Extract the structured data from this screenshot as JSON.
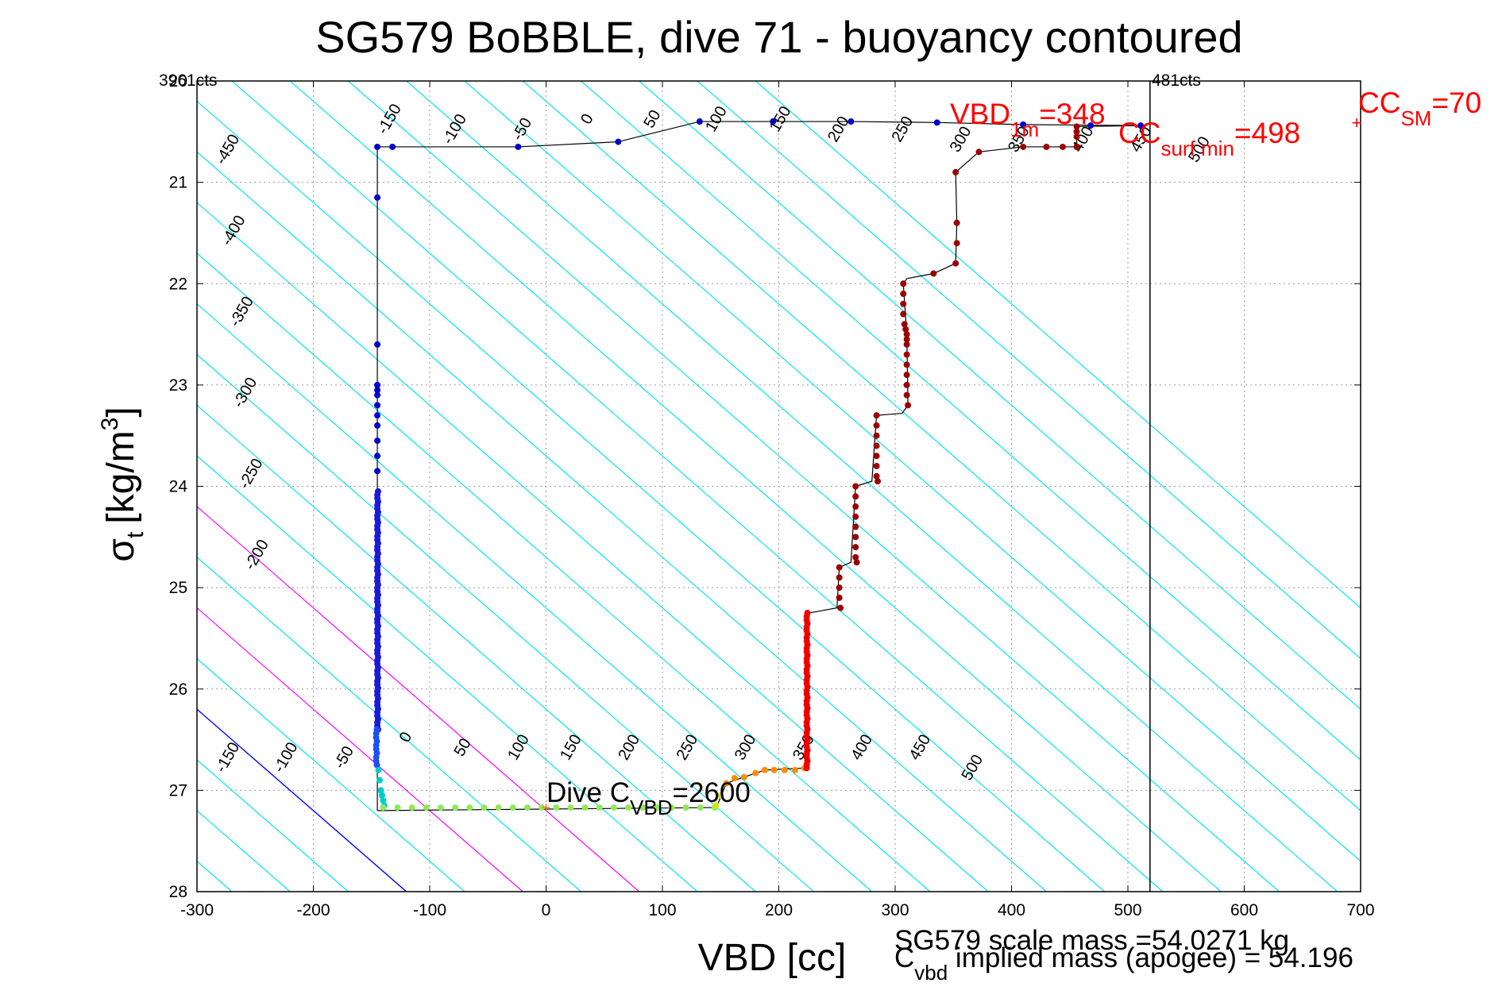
{
  "chart_data": {
    "type": "scatter",
    "title": "SG579 BoBBLE, dive 71 - buoyancy contoured",
    "xlabel": "VBD [cc]",
    "ylabel_main": "σ",
    "ylabel_sub": "t",
    "ylabel_unit": "[kg/m",
    "ylabel_sup": "3",
    "ylabel_close": "]",
    "xlim": [
      -300,
      700
    ],
    "ylim": [
      28,
      20
    ],
    "xticks": [
      -300,
      -200,
      -100,
      0,
      100,
      200,
      300,
      400,
      500,
      600,
      700
    ],
    "yticks": [
      20,
      21,
      22,
      23,
      24,
      25,
      26,
      27,
      28
    ],
    "grid": true,
    "colors": {
      "contour": "#00e5ee",
      "magenta": "#ff00ff",
      "zero_line": "#0000ff",
      "profile_line": "#000000",
      "annotation": "#ff0000"
    },
    "top_left_counts": "3961cts",
    "top_right_counts": "481cts",
    "vertical_line_x": 519,
    "contour_levels_top": [
      "-450",
      "-400",
      "-350",
      "-300",
      "-250",
      "-200"
    ],
    "contour_labels_upper": [
      {
        "text": "-150",
        "x": -131,
        "s": 20.4
      },
      {
        "text": "-100",
        "x": -75,
        "s": 20.5
      },
      {
        "text": "-50",
        "x": -17,
        "s": 20.5
      },
      {
        "text": "0",
        "x": 39,
        "s": 20.4
      },
      {
        "text": "50",
        "x": 95,
        "s": 20.4
      },
      {
        "text": "100",
        "x": 150,
        "s": 20.4
      },
      {
        "text": "150",
        "x": 205,
        "s": 20.4
      },
      {
        "text": "200",
        "x": 255,
        "s": 20.5
      },
      {
        "text": "250",
        "x": 310,
        "s": 20.5
      },
      {
        "text": "300",
        "x": 360,
        "s": 20.6
      },
      {
        "text": "350",
        "x": 410,
        "s": 20.6
      },
      {
        "text": "400",
        "x": 465,
        "s": 20.6
      },
      {
        "text": "450",
        "x": 515,
        "s": 20.6
      },
      {
        "text": "500",
        "x": 565,
        "s": 20.7
      }
    ],
    "contour_labels_left": [
      {
        "text": "-450",
        "x": -270,
        "s": 20.7
      },
      {
        "text": "-400",
        "x": -265,
        "s": 21.5
      },
      {
        "text": "-350",
        "x": -258,
        "s": 22.3
      },
      {
        "text": "-300",
        "x": -255,
        "s": 23.1
      },
      {
        "text": "-250",
        "x": -250,
        "s": 23.9
      },
      {
        "text": "-200",
        "x": -245,
        "s": 24.7
      }
    ],
    "contour_labels_lower": [
      {
        "text": "-150",
        "x": -270,
        "s": 26.7
      },
      {
        "text": "-100",
        "x": -220,
        "s": 26.7
      },
      {
        "text": "-50",
        "x": -170,
        "s": 26.7
      },
      {
        "text": "0",
        "x": -117,
        "s": 26.5
      },
      {
        "text": "50",
        "x": -68,
        "s": 26.6
      },
      {
        "text": "100",
        "x": -20,
        "s": 26.6
      },
      {
        "text": "150",
        "x": 25,
        "s": 26.6
      },
      {
        "text": "200",
        "x": 75,
        "s": 26.6
      },
      {
        "text": "250",
        "x": 125,
        "s": 26.6
      },
      {
        "text": "300",
        "x": 175,
        "s": 26.6
      },
      {
        "text": "350",
        "x": 225,
        "s": 26.6
      },
      {
        "text": "400",
        "x": 275,
        "s": 26.6
      },
      {
        "text": "450",
        "x": 325,
        "s": 26.6
      },
      {
        "text": "500",
        "x": 370,
        "s": 26.8
      }
    ],
    "annotations": {
      "vbd1m_main": "VBD",
      "vbd1m_sub": "1m",
      "vbd1m_value": "=348",
      "ccsurf_main": "CC",
      "ccsurf_sub": "surf min",
      "ccsurf_value": "=498",
      "ccsm_main": "CC",
      "ccsm_sub": "SM",
      "ccsm_value": "=70",
      "dive_main": "Dive C",
      "dive_sub": "VBD",
      "dive_value": "=2600",
      "scale_mass": "SG579 scale mass =54.0271 kg",
      "implied_main": "C",
      "implied_sub": "vbd",
      "implied_text": " implied mass (apogee) = 54.196"
    },
    "descent_path": [
      [
        -145,
        20.65
      ],
      [
        -145,
        27.2
      ]
    ],
    "series": [
      {
        "name": "descent-upper",
        "color": "#0000cc",
        "points": [
          [
            -145,
            20.65
          ],
          [
            -132,
            20.65
          ],
          [
            -24,
            20.65
          ],
          [
            62,
            20.6
          ],
          [
            132,
            20.4
          ],
          [
            195,
            20.4
          ],
          [
            262,
            20.4
          ],
          [
            336,
            20.41
          ],
          [
            410,
            20.43
          ],
          [
            468,
            20.44
          ],
          [
            511,
            20.44
          ],
          [
            -145,
            21.15
          ],
          [
            -145,
            22.6
          ],
          [
            -145,
            23.0
          ],
          [
            -145,
            23.05
          ],
          [
            -145,
            23.1
          ],
          [
            -145,
            23.2
          ],
          [
            -145,
            23.3
          ],
          [
            -145,
            23.4
          ],
          [
            -145,
            23.55
          ],
          [
            -145,
            23.7
          ],
          [
            -145,
            23.85
          ]
        ]
      },
      {
        "name": "descent-dense",
        "color": "#1a1add",
        "x": -145,
        "s_range": [
          24.05,
          26.4
        ],
        "count": 70
      },
      {
        "name": "descent-bottom",
        "color": "#1e50f0",
        "x": -146,
        "s_range": [
          26.4,
          26.75
        ],
        "count": 10
      },
      {
        "name": "apogee",
        "color": "#00cccc",
        "points": [
          [
            -144,
            26.8
          ],
          [
            -143,
            26.9
          ],
          [
            -142,
            27.0
          ],
          [
            -141,
            27.05
          ],
          [
            -140,
            27.1
          ],
          [
            -139,
            27.15
          ]
        ]
      },
      {
        "name": "bottom-row",
        "color": "#8fea5a",
        "s": 27.17,
        "x_range": [
          -140,
          145
        ],
        "count": 24
      },
      {
        "name": "turn-yellow",
        "color": "#d4e600",
        "points": [
          [
            146,
            27.15
          ],
          [
            150,
            27.05
          ]
        ]
      },
      {
        "name": "turn-orange",
        "color": "#ff8c00",
        "points": [
          [
            155,
            26.93
          ],
          [
            162,
            26.88
          ],
          [
            170,
            26.87
          ],
          [
            180,
            26.83
          ],
          [
            188,
            26.8
          ],
          [
            196,
            26.8
          ],
          [
            205,
            26.8
          ],
          [
            214,
            26.8
          ],
          [
            222,
            26.78
          ]
        ]
      },
      {
        "name": "ascent-red",
        "color": "#ee0000",
        "x": 224,
        "s_range": [
          25.25,
          26.78
        ],
        "count": 45
      },
      {
        "name": "ascent-darkred",
        "color": "#9a0000",
        "points": [
          [
            252,
            24.8
          ],
          [
            252,
            24.9
          ],
          [
            252,
            25.0
          ],
          [
            252,
            25.1
          ],
          [
            253,
            25.2
          ],
          [
            266,
            24.0
          ],
          [
            266,
            24.1
          ],
          [
            266,
            24.2
          ],
          [
            266,
            24.3
          ],
          [
            266,
            24.4
          ],
          [
            266,
            24.5
          ],
          [
            266,
            24.6
          ],
          [
            266,
            24.7
          ],
          [
            267,
            24.75
          ],
          [
            284,
            23.3
          ],
          [
            284,
            23.4
          ],
          [
            284,
            23.5
          ],
          [
            284,
            23.6
          ],
          [
            284,
            23.7
          ],
          [
            284,
            23.8
          ],
          [
            284,
            23.9
          ],
          [
            285,
            23.95
          ],
          [
            310,
            22.5
          ],
          [
            310,
            22.55
          ],
          [
            310,
            22.6
          ],
          [
            310,
            22.7
          ],
          [
            310,
            22.8
          ],
          [
            310,
            22.9
          ],
          [
            310,
            23.0
          ],
          [
            310,
            23.1
          ],
          [
            311,
            23.2
          ],
          [
            307,
            22.0
          ],
          [
            307,
            22.1
          ],
          [
            307,
            22.2
          ],
          [
            307,
            22.3
          ],
          [
            308,
            22.4
          ],
          [
            309,
            22.45
          ],
          [
            333,
            21.9
          ],
          [
            352,
            21.8
          ],
          [
            353,
            21.6
          ],
          [
            353,
            21.4
          ],
          [
            352,
            20.9
          ],
          [
            372,
            20.7
          ],
          [
            410,
            20.65
          ],
          [
            430,
            20.65
          ],
          [
            444,
            20.65
          ],
          [
            456,
            20.65
          ],
          [
            456,
            20.55
          ],
          [
            456,
            20.5
          ],
          [
            456,
            20.45
          ]
        ]
      }
    ],
    "ascent_path": [
      [
        147,
        27.15
      ],
      [
        155,
        26.93
      ],
      [
        170,
        26.87
      ],
      [
        188,
        26.8
      ],
      [
        222,
        26.78
      ],
      [
        224,
        26.5
      ],
      [
        224,
        25.25
      ],
      [
        226,
        25.25
      ],
      [
        250,
        25.2
      ],
      [
        252,
        24.8
      ],
      [
        262,
        24.75
      ],
      [
        266,
        24.0
      ],
      [
        280,
        23.95
      ],
      [
        284,
        23.3
      ],
      [
        306,
        23.28
      ],
      [
        311,
        23.2
      ],
      [
        310,
        22.5
      ],
      [
        307,
        22.0
      ],
      [
        310,
        21.95
      ],
      [
        333,
        21.9
      ],
      [
        352,
        21.8
      ],
      [
        353,
        21.4
      ],
      [
        352,
        20.9
      ],
      [
        372,
        20.7
      ],
      [
        410,
        20.65
      ],
      [
        456,
        20.65
      ],
      [
        456,
        20.45
      ],
      [
        511,
        20.44
      ]
    ]
  }
}
